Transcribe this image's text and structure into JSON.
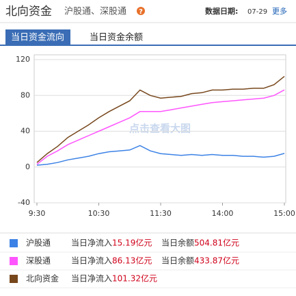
{
  "header": {
    "title": "北向资金",
    "subtitle": "沪股通、深股通",
    "help": "?",
    "date_label": "数据日期:",
    "date": "07-29",
    "more": "更多"
  },
  "tabs": [
    "当日资金流向",
    "当日资金余额"
  ],
  "watermark": "点击查看大图",
  "chart_data": {
    "type": "line",
    "x": [
      0,
      10,
      20,
      30,
      40,
      50,
      60,
      70,
      80,
      90,
      100,
      110,
      120,
      130,
      140,
      150,
      160,
      170,
      180,
      190,
      200,
      210,
      220,
      230,
      240
    ],
    "xlim": [
      0,
      240
    ],
    "xticks": [
      {
        "value": 0,
        "label": "9:30"
      },
      {
        "value": 60,
        "label": "10:30"
      },
      {
        "value": 120,
        "label": "11:30"
      },
      {
        "value": 180,
        "label": "14:00"
      },
      {
        "value": 240,
        "label": "15:00"
      }
    ],
    "ylim": [
      -40,
      120
    ],
    "yticks": [
      -40,
      0,
      40,
      80,
      120
    ],
    "grid": true,
    "net_inflow_label": "当日净流入",
    "balance_label": "当日余额",
    "unit": "亿元",
    "series": [
      {
        "name": "沪股通",
        "color": "#3c82e6",
        "net_inflow": 15.19,
        "balance": 504.81,
        "values": [
          2,
          3,
          5,
          8,
          10,
          12,
          15,
          17,
          18,
          19,
          24,
          18,
          15,
          14,
          13,
          14,
          13,
          14,
          13,
          13,
          12,
          12,
          11,
          12,
          15.19
        ]
      },
      {
        "name": "深股通",
        "color": "#ff55ff",
        "net_inflow": 86.13,
        "balance": 433.87,
        "values": [
          3,
          12,
          18,
          25,
          30,
          35,
          40,
          45,
          50,
          55,
          62,
          62,
          62,
          64,
          66,
          68,
          70,
          72,
          73,
          74,
          75,
          76,
          77,
          80,
          86.13
        ]
      },
      {
        "name": "北向资金",
        "color": "#77471c",
        "net_inflow": 101.32,
        "values": [
          5,
          15,
          23,
          33,
          40,
          47,
          55,
          62,
          68,
          74,
          86,
          80,
          77,
          78,
          79,
          82,
          83,
          86,
          86,
          87,
          87,
          88,
          88,
          92,
          101.32
        ]
      }
    ]
  }
}
